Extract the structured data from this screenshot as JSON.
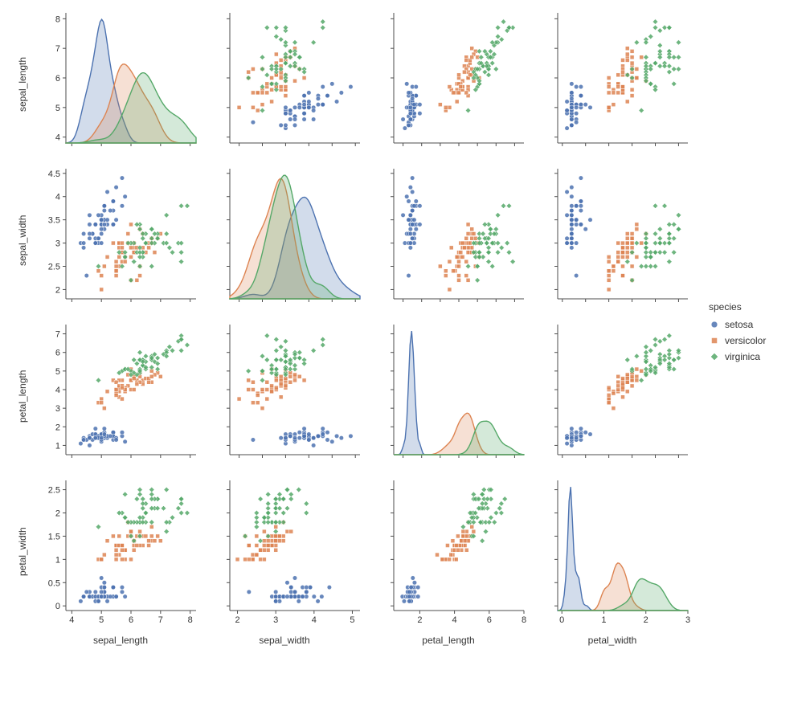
{
  "variables": [
    "sepal_length",
    "sepal_width",
    "petal_length",
    "petal_width"
  ],
  "axis_style": {
    "tick_color": "#4d4d4d",
    "spine_color": "#4d4d4d",
    "tick_font_size": 11,
    "label_font_size": 12,
    "label_color": "#333333",
    "spine_width": 1,
    "background": "#ffffff"
  },
  "axes": {
    "sepal_length": {
      "lim": [
        3.8,
        8.2
      ],
      "ticks": [
        4,
        5,
        6,
        7,
        8
      ]
    },
    "sepal_width": {
      "lim": [
        1.8,
        4.6
      ],
      "ticks": [
        2.0,
        2.5,
        3.0,
        3.5,
        4.0,
        4.5
      ]
    },
    "petal_length": {
      "lim": [
        0.5,
        7.5
      ],
      "ticks": [
        1,
        2,
        3,
        4,
        5,
        6,
        7
      ]
    },
    "petal_width": {
      "lim": [
        -0.1,
        2.7
      ],
      "ticks": [
        0.0,
        0.5,
        1.0,
        1.5,
        2.0,
        2.5
      ]
    }
  },
  "axes_bottom_extended": {
    "sepal_width": {
      "lim": [
        1.8,
        5.2
      ],
      "ticks": [
        2,
        3,
        4,
        5
      ]
    },
    "petal_length": {
      "lim": [
        0.5,
        8.0
      ],
      "ticks": [
        2,
        4,
        6,
        8
      ]
    },
    "petal_width": {
      "lim": [
        -0.1,
        3.0
      ],
      "ticks": [
        0,
        1,
        2,
        3
      ]
    }
  },
  "legend": {
    "title": "species",
    "items": [
      {
        "label": "setosa",
        "color": "#4c72b0",
        "marker": "circle"
      },
      {
        "label": "versicolor",
        "color": "#dd8452",
        "marker": "square"
      },
      {
        "label": "virginica",
        "color": "#55a868",
        "marker": "diamond"
      }
    ]
  },
  "marker_style": {
    "size": 5,
    "edge_width": 0.8,
    "edge_alpha": 1.0,
    "fill_alpha": 0.85
  },
  "kde_style": {
    "fill_alpha": 0.25,
    "line_width": 1.4
  },
  "species": {
    "setosa": {
      "color": "#4c72b0",
      "marker": "circle",
      "sepal_length": [
        5.1,
        4.9,
        4.7,
        4.6,
        5.0,
        5.4,
        4.6,
        5.0,
        4.4,
        4.9,
        5.4,
        4.8,
        4.8,
        4.3,
        5.8,
        5.7,
        5.4,
        5.1,
        5.7,
        5.1,
        5.4,
        5.1,
        4.6,
        5.1,
        4.8,
        5.0,
        5.0,
        5.2,
        5.2,
        4.7,
        4.8,
        5.4,
        5.2,
        5.5,
        4.9,
        5.0,
        5.5,
        4.9,
        4.4,
        5.1,
        5.0,
        4.5,
        4.4,
        5.0,
        5.1,
        4.8,
        5.1,
        4.6,
        5.3,
        5.0
      ],
      "sepal_width": [
        3.5,
        3.0,
        3.2,
        3.1,
        3.6,
        3.9,
        3.4,
        3.4,
        2.9,
        3.1,
        3.7,
        3.4,
        3.0,
        3.0,
        4.0,
        4.4,
        3.9,
        3.5,
        3.8,
        3.8,
        3.4,
        3.7,
        3.6,
        3.3,
        3.4,
        3.0,
        3.4,
        3.5,
        3.4,
        3.2,
        3.1,
        3.4,
        4.1,
        4.2,
        3.1,
        3.2,
        3.5,
        3.6,
        3.0,
        3.4,
        3.5,
        2.3,
        3.2,
        3.5,
        3.8,
        3.0,
        3.8,
        3.2,
        3.7,
        3.3
      ],
      "petal_length": [
        1.4,
        1.4,
        1.3,
        1.5,
        1.4,
        1.7,
        1.4,
        1.5,
        1.4,
        1.5,
        1.5,
        1.6,
        1.4,
        1.1,
        1.2,
        1.5,
        1.3,
        1.4,
        1.7,
        1.5,
        1.7,
        1.5,
        1.0,
        1.7,
        1.9,
        1.6,
        1.6,
        1.5,
        1.4,
        1.6,
        1.6,
        1.5,
        1.5,
        1.4,
        1.5,
        1.2,
        1.3,
        1.4,
        1.3,
        1.5,
        1.3,
        1.3,
        1.3,
        1.6,
        1.9,
        1.4,
        1.6,
        1.4,
        1.5,
        1.4
      ],
      "petal_width": [
        0.2,
        0.2,
        0.2,
        0.2,
        0.2,
        0.4,
        0.3,
        0.2,
        0.2,
        0.1,
        0.2,
        0.2,
        0.1,
        0.1,
        0.2,
        0.4,
        0.4,
        0.3,
        0.3,
        0.3,
        0.2,
        0.4,
        0.2,
        0.5,
        0.2,
        0.2,
        0.4,
        0.2,
        0.2,
        0.2,
        0.2,
        0.4,
        0.1,
        0.2,
        0.2,
        0.2,
        0.2,
        0.1,
        0.2,
        0.2,
        0.3,
        0.3,
        0.2,
        0.6,
        0.4,
        0.3,
        0.2,
        0.2,
        0.2,
        0.2
      ]
    },
    "versicolor": {
      "color": "#dd8452",
      "marker": "square",
      "sepal_length": [
        7.0,
        6.4,
        6.9,
        5.5,
        6.5,
        5.7,
        6.3,
        4.9,
        6.6,
        5.2,
        5.0,
        5.9,
        6.0,
        6.1,
        5.6,
        6.7,
        5.6,
        5.8,
        6.2,
        5.6,
        5.9,
        6.1,
        6.3,
        6.1,
        6.4,
        6.6,
        6.8,
        6.7,
        6.0,
        5.7,
        5.5,
        5.5,
        5.8,
        6.0,
        5.4,
        6.0,
        6.7,
        6.3,
        5.6,
        5.5,
        5.5,
        6.1,
        5.8,
        5.0,
        5.6,
        5.7,
        5.7,
        6.2,
        5.1,
        5.7
      ],
      "sepal_width": [
        3.2,
        3.2,
        3.1,
        2.3,
        2.8,
        2.8,
        3.3,
        2.4,
        2.9,
        2.7,
        2.0,
        3.0,
        2.2,
        2.9,
        2.9,
        3.1,
        3.0,
        2.7,
        2.2,
        2.5,
        3.2,
        2.8,
        2.5,
        2.8,
        2.9,
        3.0,
        2.8,
        3.0,
        2.9,
        2.6,
        2.4,
        2.4,
        2.7,
        2.7,
        3.0,
        3.4,
        3.1,
        2.3,
        3.0,
        2.5,
        2.6,
        3.0,
        2.6,
        2.3,
        2.7,
        3.0,
        2.9,
        2.9,
        2.5,
        2.8
      ],
      "petal_length": [
        4.7,
        4.5,
        4.9,
        4.0,
        4.6,
        4.5,
        4.7,
        3.3,
        4.6,
        3.9,
        3.5,
        4.2,
        4.0,
        4.7,
        3.6,
        4.4,
        4.5,
        4.1,
        4.5,
        3.9,
        4.8,
        4.0,
        4.9,
        4.7,
        4.3,
        4.4,
        4.8,
        5.0,
        4.5,
        3.5,
        3.8,
        3.7,
        3.9,
        5.1,
        4.5,
        4.5,
        4.7,
        4.4,
        4.1,
        4.0,
        4.4,
        4.6,
        4.0,
        3.3,
        4.2,
        4.2,
        4.2,
        4.3,
        3.0,
        4.1
      ],
      "petal_width": [
        1.4,
        1.5,
        1.5,
        1.3,
        1.5,
        1.3,
        1.6,
        1.0,
        1.3,
        1.4,
        1.0,
        1.5,
        1.0,
        1.4,
        1.3,
        1.4,
        1.5,
        1.0,
        1.5,
        1.1,
        1.8,
        1.3,
        1.5,
        1.2,
        1.3,
        1.4,
        1.4,
        1.7,
        1.5,
        1.0,
        1.1,
        1.0,
        1.2,
        1.6,
        1.5,
        1.6,
        1.5,
        1.3,
        1.3,
        1.3,
        1.2,
        1.4,
        1.2,
        1.0,
        1.3,
        1.2,
        1.3,
        1.3,
        1.1,
        1.3
      ]
    },
    "virginica": {
      "color": "#55a868",
      "marker": "diamond",
      "sepal_length": [
        6.3,
        5.8,
        7.1,
        6.3,
        6.5,
        7.6,
        4.9,
        7.3,
        6.7,
        7.2,
        6.5,
        6.4,
        6.8,
        5.7,
        5.8,
        6.4,
        6.5,
        7.7,
        7.7,
        6.0,
        6.9,
        5.6,
        7.7,
        6.3,
        6.7,
        7.2,
        6.2,
        6.1,
        6.4,
        7.2,
        7.4,
        7.9,
        6.4,
        6.3,
        6.1,
        7.7,
        6.3,
        6.4,
        6.0,
        6.9,
        6.7,
        6.9,
        5.8,
        6.8,
        6.7,
        6.7,
        6.3,
        6.5,
        6.2,
        5.9
      ],
      "sepal_width": [
        3.3,
        2.7,
        3.0,
        2.9,
        3.0,
        3.0,
        2.5,
        2.9,
        2.5,
        3.6,
        3.2,
        2.7,
        3.0,
        2.5,
        2.8,
        3.2,
        3.0,
        3.8,
        2.6,
        2.2,
        3.2,
        2.8,
        2.8,
        2.7,
        3.3,
        3.2,
        2.8,
        3.0,
        2.8,
        3.0,
        2.8,
        3.8,
        2.8,
        2.8,
        2.6,
        3.0,
        3.4,
        3.1,
        3.0,
        3.1,
        3.1,
        3.1,
        2.7,
        3.2,
        3.3,
        3.0,
        2.5,
        3.0,
        3.4,
        3.0
      ],
      "petal_length": [
        6.0,
        5.1,
        5.9,
        5.6,
        5.8,
        6.6,
        4.5,
        6.3,
        5.8,
        6.1,
        5.1,
        5.3,
        5.5,
        5.0,
        5.1,
        5.3,
        5.5,
        6.7,
        6.9,
        5.0,
        5.7,
        4.9,
        6.7,
        4.9,
        5.7,
        6.0,
        4.8,
        4.9,
        5.6,
        5.8,
        6.1,
        6.4,
        5.6,
        5.1,
        5.6,
        6.1,
        5.6,
        5.5,
        4.8,
        5.4,
        5.6,
        5.1,
        5.1,
        5.9,
        5.7,
        5.2,
        5.0,
        5.2,
        5.4,
        5.1
      ],
      "petal_width": [
        2.5,
        1.9,
        2.1,
        1.8,
        2.2,
        2.1,
        1.7,
        1.8,
        1.8,
        2.5,
        2.0,
        1.9,
        2.1,
        2.0,
        2.4,
        2.3,
        1.8,
        2.2,
        2.3,
        1.5,
        2.3,
        2.0,
        2.0,
        1.8,
        2.1,
        1.8,
        1.8,
        1.8,
        2.1,
        1.6,
        1.9,
        2.0,
        2.2,
        1.5,
        1.4,
        2.3,
        2.4,
        1.8,
        1.8,
        2.1,
        2.4,
        2.3,
        1.9,
        2.3,
        2.5,
        2.3,
        1.9,
        2.0,
        2.3,
        1.8
      ]
    }
  }
}
